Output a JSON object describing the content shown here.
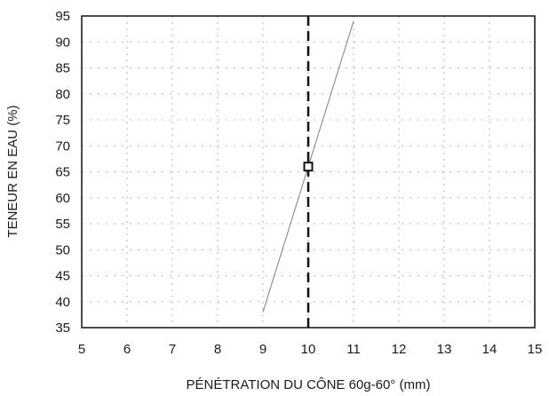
{
  "chart_data": {
    "type": "line",
    "xlabel": "PÉNÉTRATION DU CÔNE 60g-60° (mm)",
    "ylabel": "TENEUR EN EAU (%)",
    "xlim": [
      5,
      15
    ],
    "ylim": [
      35,
      95
    ],
    "x_ticks": [
      "5",
      "6",
      "7",
      "8",
      "9",
      "10",
      "11",
      "12",
      "13",
      "14",
      "15"
    ],
    "y_ticks": [
      "35",
      "40",
      "45",
      "50",
      "55",
      "60",
      "65",
      "70",
      "75",
      "80",
      "85",
      "90",
      "95"
    ],
    "grid": true,
    "series": [
      {
        "x": [
          9.0,
          11.0
        ],
        "y": [
          38.0,
          94.0
        ]
      }
    ],
    "reference_line": {
      "x": 10,
      "style": "dashed"
    },
    "marker": {
      "x": 10,
      "y": 66,
      "shape": "square"
    },
    "colors": {
      "line": "#808080",
      "reference": "#111111",
      "frame": "#111111",
      "grid": "#b5b5b5"
    }
  }
}
